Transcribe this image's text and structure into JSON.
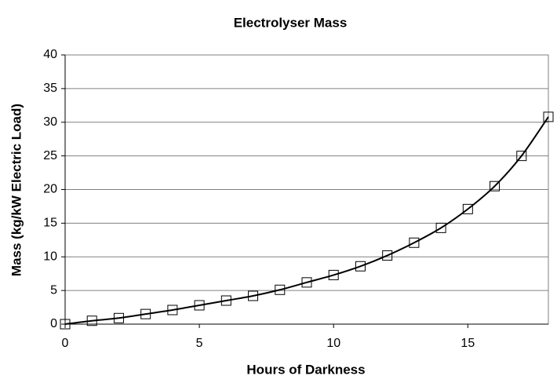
{
  "chart_data": {
    "type": "scatter",
    "title": "Electrolyser Mass",
    "xlabel": "Hours of Darkness",
    "ylabel": "Mass (kg/kW Electric Load)",
    "x": [
      0,
      1,
      2,
      3,
      4,
      5,
      6,
      7,
      8,
      9,
      10,
      11,
      12,
      13,
      14,
      15,
      16,
      17,
      18
    ],
    "series": [
      {
        "color": "#000000",
        "values": [
          0,
          0.5,
          0.9,
          1.5,
          2.1,
          2.8,
          3.5,
          4.2,
          5.1,
          6.2,
          7.3,
          8.6,
          10.2,
          12.1,
          14.3,
          17.1,
          20.5,
          25.0,
          30.8
        ]
      }
    ],
    "xlim": [
      0,
      18
    ],
    "xticks": [
      0,
      5,
      10,
      15
    ],
    "ylim": [
      0,
      40
    ],
    "yticks": [
      0,
      5,
      10,
      15,
      20,
      25,
      30,
      35,
      40
    ],
    "grid": true
  }
}
